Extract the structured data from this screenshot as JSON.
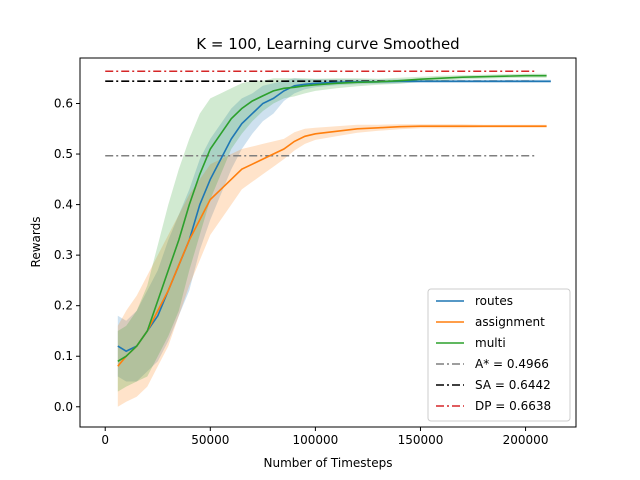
{
  "chart_data": {
    "type": "line",
    "title": "K = 100, Learning curve Smoothed",
    "xlabel": "Number of Timesteps",
    "ylabel": "Rewards",
    "xlim": [
      -12000,
      224000
    ],
    "ylim": [
      -0.04,
      0.69
    ],
    "xticks": [
      0,
      50000,
      100000,
      150000,
      200000
    ],
    "yticks": [
      0.0,
      0.1,
      0.2,
      0.3,
      0.4,
      0.5,
      0.6
    ],
    "grid": false,
    "legend_position": "lower-right",
    "series": [
      {
        "name": "routes",
        "color": "#1f77b4",
        "x": [
          6000,
          10000,
          15000,
          20000,
          25000,
          30000,
          35000,
          40000,
          45000,
          50000,
          55000,
          60000,
          65000,
          70000,
          75000,
          80000,
          85000,
          90000,
          95000,
          100000,
          110000,
          120000,
          130000,
          140000,
          150000,
          160000,
          170000,
          180000,
          190000,
          200000,
          212000
        ],
        "y": [
          0.12,
          0.11,
          0.12,
          0.15,
          0.18,
          0.23,
          0.28,
          0.33,
          0.4,
          0.45,
          0.49,
          0.53,
          0.56,
          0.58,
          0.6,
          0.61,
          0.625,
          0.635,
          0.638,
          0.64,
          0.642,
          0.643,
          0.643,
          0.644,
          0.644,
          0.644,
          0.644,
          0.644,
          0.644,
          0.644,
          0.644
        ],
        "band_halfwidth": [
          0.06,
          0.06,
          0.07,
          0.08,
          0.09,
          0.1,
          0.1,
          0.1,
          0.09,
          0.08,
          0.07,
          0.06,
          0.05,
          0.04,
          0.035,
          0.03,
          0.02,
          0.015,
          0.01,
          0.008,
          0.006,
          0.005,
          0.004,
          0.004,
          0.003,
          0.003,
          0.003,
          0.003,
          0.003,
          0.003,
          0.003
        ]
      },
      {
        "name": "assignment",
        "color": "#ff7f0e",
        "x": [
          6000,
          10000,
          15000,
          20000,
          25000,
          30000,
          35000,
          40000,
          45000,
          50000,
          55000,
          60000,
          65000,
          70000,
          75000,
          80000,
          85000,
          90000,
          95000,
          100000,
          110000,
          120000,
          130000,
          140000,
          150000,
          160000,
          170000,
          180000,
          190000,
          200000,
          210000
        ],
        "y": [
          0.08,
          0.1,
          0.12,
          0.15,
          0.19,
          0.23,
          0.28,
          0.33,
          0.37,
          0.41,
          0.43,
          0.45,
          0.47,
          0.48,
          0.49,
          0.5,
          0.51,
          0.525,
          0.535,
          0.54,
          0.545,
          0.55,
          0.552,
          0.554,
          0.555,
          0.555,
          0.555,
          0.555,
          0.555,
          0.555,
          0.555
        ],
        "band_halfwidth": [
          0.08,
          0.09,
          0.1,
          0.11,
          0.11,
          0.11,
          0.1,
          0.09,
          0.08,
          0.07,
          0.06,
          0.05,
          0.04,
          0.035,
          0.03,
          0.025,
          0.02,
          0.018,
          0.015,
          0.012,
          0.01,
          0.008,
          0.006,
          0.005,
          0.004,
          0.004,
          0.004,
          0.003,
          0.003,
          0.003,
          0.003
        ]
      },
      {
        "name": "multi",
        "color": "#2ca02c",
        "x": [
          6000,
          10000,
          15000,
          20000,
          25000,
          30000,
          35000,
          40000,
          45000,
          50000,
          55000,
          60000,
          65000,
          70000,
          75000,
          80000,
          85000,
          90000,
          95000,
          100000,
          110000,
          120000,
          130000,
          140000,
          150000,
          160000,
          170000,
          180000,
          190000,
          200000,
          210000
        ],
        "y": [
          0.09,
          0.1,
          0.12,
          0.15,
          0.21,
          0.27,
          0.33,
          0.4,
          0.46,
          0.51,
          0.54,
          0.57,
          0.59,
          0.605,
          0.615,
          0.625,
          0.63,
          0.632,
          0.635,
          0.637,
          0.64,
          0.642,
          0.643,
          0.645,
          0.648,
          0.65,
          0.652,
          0.653,
          0.654,
          0.655,
          0.655
        ],
        "band_halfwidth": [
          0.06,
          0.06,
          0.07,
          0.09,
          0.11,
          0.13,
          0.14,
          0.13,
          0.12,
          0.1,
          0.08,
          0.06,
          0.05,
          0.04,
          0.03,
          0.025,
          0.02,
          0.018,
          0.015,
          0.012,
          0.01,
          0.008,
          0.006,
          0.006,
          0.005,
          0.005,
          0.004,
          0.004,
          0.004,
          0.004,
          0.004
        ]
      }
    ],
    "reference_lines": [
      {
        "name": "A* = 0.4966",
        "value": 0.4966,
        "x_range": [
          0,
          205000
        ],
        "color": "#7f7f7f"
      },
      {
        "name": "SA = 0.6442",
        "value": 0.6442,
        "x_range": [
          0,
          205000
        ],
        "color": "#000000"
      },
      {
        "name": "DP = 0.6638",
        "value": 0.6638,
        "x_range": [
          0,
          205000
        ],
        "color": "#d62728"
      }
    ]
  }
}
